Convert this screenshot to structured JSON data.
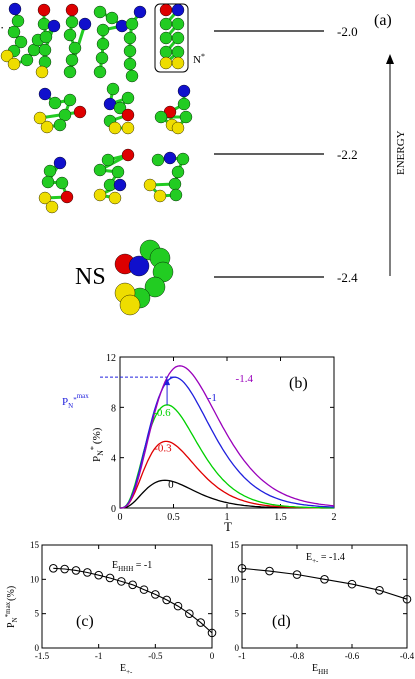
{
  "panel_a": {
    "label": "(a)",
    "energy_axis_label": "ENERGY",
    "levels": [
      "-2.0",
      "-2.2",
      "-2.4"
    ],
    "ellipsis": "· · ·",
    "nstar_label": "N",
    "nstar_sup": "*",
    "ns_label": "NS",
    "colors": {
      "green": "#22cc22",
      "yellow": "#eedd00",
      "red": "#dd0000",
      "blue": "#1010cc",
      "bond": "#22cc22"
    }
  },
  "chart_data": [
    {
      "type": "line",
      "panel_label": "(b)",
      "xlabel": "T",
      "ylabel_main": "P",
      "ylabel_sub": "N",
      "ylabel_sup": "*",
      "ylabel_unit": "(%)",
      "xlim": [
        0,
        2
      ],
      "ylim": [
        0,
        12
      ],
      "xticks": [
        "0",
        "0.5",
        "1",
        "1.5",
        "2"
      ],
      "yticks": [
        "0",
        "4",
        "8",
        "12"
      ],
      "pmax_main": "P",
      "pmax_sub": "N",
      "pmax_sup": "*",
      "pmax_supmax": "max",
      "series": [
        {
          "name": "0",
          "color": "#000000",
          "peak_T": 0.42,
          "peak_P": 2.2
        },
        {
          "name": "-0.3",
          "color": "#e00000",
          "peak_T": 0.43,
          "peak_P": 5.3
        },
        {
          "name": "-0.6",
          "color": "#00d000",
          "peak_T": 0.44,
          "peak_P": 8.2
        },
        {
          "name": "-1",
          "color": "#2020dd",
          "peak_T": 0.51,
          "peak_P": 10.4
        },
        {
          "name": "-1.4",
          "color": "#9900bb",
          "peak_T": 0.56,
          "peak_P": 11.3
        }
      ]
    },
    {
      "type": "line",
      "panel_label": "(c)",
      "annotation_main": "E",
      "annotation_sub": "HHH",
      "annotation_value": " = -1",
      "xlabel_main": "E",
      "xlabel_sub": "+-",
      "ylabel_main": "P",
      "ylabel_sub": "N",
      "ylabel_sup": "*max",
      "ylabel_unit": "(%)",
      "xlim": [
        -1.5,
        0
      ],
      "ylim": [
        0,
        15
      ],
      "xticks": [
        "-1.5",
        "-1",
        "-0.5",
        "0"
      ],
      "yticks": [
        "0",
        "5",
        "10",
        "15"
      ],
      "x": [
        -1.4,
        -1.3,
        -1.2,
        -1.1,
        -1.0,
        -0.9,
        -0.8,
        -0.7,
        -0.6,
        -0.5,
        -0.4,
        -0.3,
        -0.2,
        -0.1,
        0.0
      ],
      "y": [
        11.6,
        11.5,
        11.3,
        11.0,
        10.6,
        10.2,
        9.7,
        9.2,
        8.5,
        7.8,
        7.0,
        6.1,
        5.0,
        3.7,
        2.2
      ]
    },
    {
      "type": "line",
      "panel_label": "(d)",
      "annotation_main": "E",
      "annotation_sub": "+-",
      "annotation_value": " = -1.4",
      "xlabel_main": "E",
      "xlabel_sub": "HH",
      "xlim": [
        -1,
        -0.4
      ],
      "ylim": [
        0,
        15
      ],
      "xticks": [
        "-1",
        "-0.8",
        "-0.6",
        "-0.4"
      ],
      "yticks": [
        "0",
        "5",
        "10",
        "15"
      ],
      "x": [
        -1.0,
        -0.9,
        -0.8,
        -0.7,
        -0.6,
        -0.5,
        -0.4
      ],
      "y": [
        11.6,
        11.2,
        10.7,
        10.0,
        9.3,
        8.4,
        7.1
      ]
    }
  ]
}
